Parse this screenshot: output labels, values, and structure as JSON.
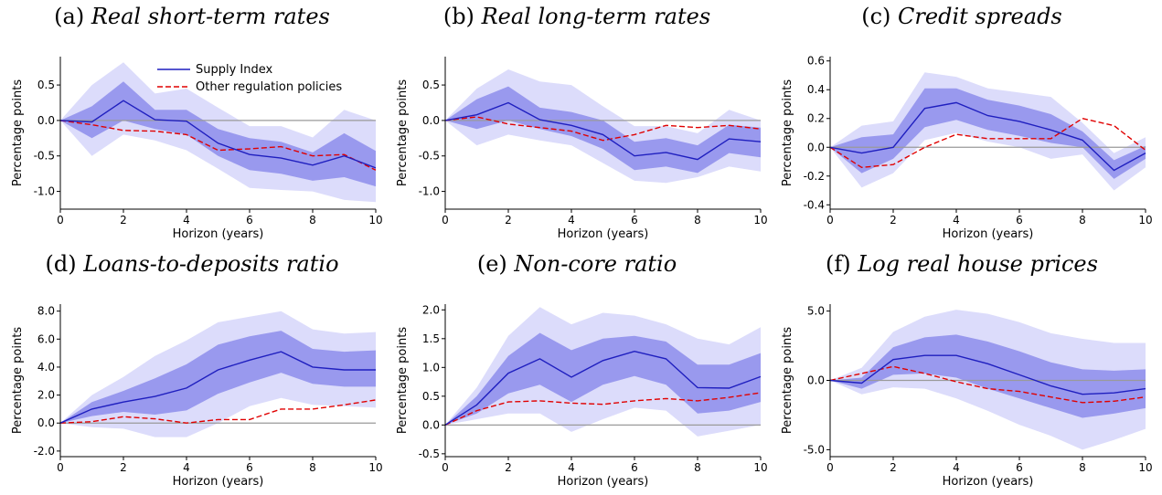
{
  "figure": {
    "legend": {
      "supply_label": "Supply Index",
      "other_label": "Other regulation policies"
    }
  },
  "colors": {
    "supply_line": "#1f1fbf",
    "other_line": "#e00000",
    "band_inner": "#9999ee",
    "band_outer": "#dcdcfb",
    "zero_line": "#9a9a9a"
  },
  "chart_data": [
    {
      "type": "line",
      "panel_label": "(a)",
      "title": "Real short-term rates",
      "xlabel": "Horizon (years)",
      "ylabel": "Percentage points",
      "xlim": [
        0,
        10
      ],
      "ylim": [
        -1.25,
        0.9
      ],
      "xticks": [
        0,
        2,
        4,
        6,
        8,
        10
      ],
      "xtick_labels": [
        "0",
        "2",
        "4",
        "6",
        "8",
        "10"
      ],
      "yticks": [
        0.5,
        0.0,
        -0.5,
        -1.0
      ],
      "ytick_labels": [
        "0.5",
        "0.0",
        "-0.5",
        "-1.0"
      ],
      "x": [
        0,
        1,
        2,
        3,
        4,
        5,
        6,
        7,
        8,
        9,
        10
      ],
      "series": [
        {
          "name": "Supply Index",
          "values": [
            0,
            -0.02,
            0.28,
            0.01,
            -0.01,
            -0.32,
            -0.48,
            -0.53,
            -0.63,
            -0.5,
            -0.67
          ]
        },
        {
          "name": "Other regulation policies",
          "values": [
            0,
            -0.06,
            -0.14,
            -0.15,
            -0.2,
            -0.42,
            -0.4,
            -0.37,
            -0.5,
            -0.48,
            -0.7
          ]
        }
      ],
      "bands": [
        {
          "lower": [
            0,
            -0.5,
            -0.2,
            -0.28,
            -0.42,
            -0.68,
            -0.95,
            -0.98,
            -1.0,
            -1.12,
            -1.15
          ],
          "upper": [
            0,
            0.5,
            0.82,
            0.38,
            0.45,
            0.18,
            -0.08,
            -0.08,
            -0.24,
            0.15,
            0.0
          ]
        },
        {
          "lower": [
            0,
            -0.25,
            0.0,
            -0.12,
            -0.2,
            -0.5,
            -0.7,
            -0.75,
            -0.85,
            -0.8,
            -0.93
          ],
          "upper": [
            0,
            0.2,
            0.55,
            0.15,
            0.15,
            -0.12,
            -0.25,
            -0.3,
            -0.45,
            -0.18,
            -0.43
          ]
        }
      ],
      "legend": "top-center"
    },
    {
      "type": "line",
      "panel_label": "(b)",
      "title": "Real long-term rates",
      "xlabel": "Horizon (years)",
      "ylabel": "Percentage points",
      "xlim": [
        0,
        10
      ],
      "ylim": [
        -1.25,
        0.9
      ],
      "xticks": [
        0,
        2,
        4,
        6,
        8,
        10
      ],
      "xtick_labels": [
        "0",
        "2",
        "4",
        "6",
        "8",
        "10"
      ],
      "yticks": [
        0.5,
        0.0,
        -0.5,
        -1.0
      ],
      "ytick_labels": [
        "0.5",
        "0.0",
        "-0.5",
        "-1.0"
      ],
      "x": [
        0,
        1,
        2,
        3,
        4,
        5,
        6,
        7,
        8,
        9,
        10
      ],
      "series": [
        {
          "name": "Supply Index",
          "values": [
            0,
            0.08,
            0.25,
            0.01,
            -0.07,
            -0.2,
            -0.5,
            -0.45,
            -0.55,
            -0.26,
            -0.3
          ]
        },
        {
          "name": "Other regulation policies",
          "values": [
            0,
            0.05,
            -0.05,
            -0.1,
            -0.15,
            -0.28,
            -0.2,
            -0.07,
            -0.1,
            -0.07,
            -0.12
          ]
        }
      ],
      "bands": [
        {
          "lower": [
            0,
            -0.35,
            -0.2,
            -0.28,
            -0.35,
            -0.6,
            -0.85,
            -0.88,
            -0.8,
            -0.65,
            -0.72
          ],
          "upper": [
            0,
            0.45,
            0.72,
            0.55,
            0.5,
            0.2,
            -0.08,
            -0.08,
            -0.18,
            0.15,
            0.0
          ]
        },
        {
          "lower": [
            0,
            -0.12,
            0.0,
            -0.12,
            -0.22,
            -0.4,
            -0.7,
            -0.65,
            -0.74,
            -0.46,
            -0.52
          ],
          "upper": [
            0,
            0.3,
            0.48,
            0.18,
            0.12,
            0.0,
            -0.3,
            -0.25,
            -0.35,
            -0.06,
            -0.1
          ]
        }
      ]
    },
    {
      "type": "line",
      "panel_label": "(c)",
      "title": "Credit spreads",
      "xlabel": "Horizon (years)",
      "ylabel": "Percentage points",
      "xlim": [
        0,
        10
      ],
      "ylim": [
        -0.43,
        0.63
      ],
      "xticks": [
        0,
        2,
        4,
        6,
        8,
        10
      ],
      "xtick_labels": [
        "0",
        "2",
        "4",
        "6",
        "8",
        "10"
      ],
      "yticks": [
        0.6,
        0.4,
        0.2,
        0.0,
        -0.2,
        -0.4
      ],
      "ytick_labels": [
        "0.6",
        "0.4",
        "0.2",
        "0.0",
        "-0.2",
        "-0.4"
      ],
      "x": [
        0,
        1,
        2,
        3,
        4,
        5,
        6,
        7,
        8,
        9,
        10
      ],
      "series": [
        {
          "name": "Supply Index",
          "values": [
            0,
            -0.04,
            0.0,
            0.27,
            0.31,
            0.22,
            0.18,
            0.12,
            0.05,
            -0.16,
            -0.04
          ]
        },
        {
          "name": "Other regulation policies",
          "values": [
            0,
            -0.14,
            -0.12,
            0.0,
            0.09,
            0.06,
            0.06,
            0.06,
            0.2,
            0.15,
            -0.02
          ]
        }
      ],
      "bands": [
        {
          "lower": [
            0,
            -0.28,
            -0.18,
            0.05,
            0.1,
            0.04,
            0.0,
            -0.08,
            -0.05,
            -0.3,
            -0.14
          ],
          "upper": [
            0,
            0.15,
            0.18,
            0.52,
            0.49,
            0.41,
            0.38,
            0.35,
            0.17,
            -0.04,
            0.07
          ]
        },
        {
          "lower": [
            0,
            -0.18,
            -0.08,
            0.14,
            0.19,
            0.12,
            0.08,
            0.03,
            0.0,
            -0.22,
            -0.08
          ],
          "upper": [
            0,
            0.07,
            0.09,
            0.41,
            0.41,
            0.33,
            0.29,
            0.23,
            0.11,
            -0.09,
            0.01
          ]
        }
      ]
    },
    {
      "type": "line",
      "panel_label": "(d)",
      "title": "Loans-to-deposits ratio",
      "xlabel": "Horizon (years)",
      "ylabel": "Percentage points",
      "xlim": [
        0,
        10
      ],
      "ylim": [
        -2.4,
        8.5
      ],
      "xticks": [
        0,
        2,
        4,
        6,
        8,
        10
      ],
      "xtick_labels": [
        "0",
        "2",
        "4",
        "6",
        "8",
        "10"
      ],
      "yticks": [
        8.0,
        6.0,
        4.0,
        2.0,
        0.0,
        -2.0
      ],
      "ytick_labels": [
        "8.0",
        "6.0",
        "4.0",
        "2.0",
        "0.0",
        "-2.0"
      ],
      "x": [
        0,
        1,
        2,
        3,
        4,
        5,
        6,
        7,
        8,
        9,
        10
      ],
      "series": [
        {
          "name": "Supply Index",
          "values": [
            0,
            1.0,
            1.5,
            1.9,
            2.5,
            3.8,
            4.5,
            5.1,
            4.0,
            3.8,
            3.8
          ]
        },
        {
          "name": "Other regulation policies",
          "values": [
            0,
            0.1,
            0.45,
            0.3,
            0.0,
            0.25,
            0.25,
            1.0,
            1.0,
            1.3,
            1.65
          ]
        }
      ],
      "bands": [
        {
          "lower": [
            0,
            -0.3,
            -0.4,
            -1.0,
            -1.0,
            0.0,
            1.2,
            1.8,
            1.3,
            1.2,
            1.1
          ],
          "upper": [
            0,
            2.0,
            3.3,
            4.8,
            5.9,
            7.2,
            7.6,
            8.0,
            6.7,
            6.4,
            6.5
          ]
        },
        {
          "lower": [
            0,
            0.5,
            0.8,
            0.6,
            0.9,
            2.1,
            2.9,
            3.6,
            2.8,
            2.6,
            2.6
          ],
          "upper": [
            0,
            1.5,
            2.3,
            3.2,
            4.2,
            5.6,
            6.2,
            6.6,
            5.3,
            5.1,
            5.2
          ]
        }
      ]
    },
    {
      "type": "line",
      "panel_label": "(e)",
      "title": "Non-core ratio",
      "xlabel": "Horizon (years)",
      "ylabel": "Percentage points",
      "xlim": [
        0,
        10
      ],
      "ylim": [
        -0.55,
        2.1
      ],
      "xticks": [
        0,
        2,
        4,
        6,
        8,
        10
      ],
      "xtick_labels": [
        "0",
        "2",
        "4",
        "6",
        "8",
        "10"
      ],
      "yticks": [
        2.0,
        1.5,
        1.0,
        0.5,
        0.0,
        -0.5
      ],
      "ytick_labels": [
        "2.0",
        "1.5",
        "1.0",
        "0.5",
        "0.0",
        "-0.5"
      ],
      "x": [
        0,
        1,
        2,
        3,
        4,
        5,
        6,
        7,
        8,
        9,
        10
      ],
      "series": [
        {
          "name": "Supply Index",
          "values": [
            0,
            0.35,
            0.9,
            1.15,
            0.83,
            1.12,
            1.28,
            1.15,
            0.65,
            0.64,
            0.84
          ]
        },
        {
          "name": "Other regulation policies",
          "values": [
            0,
            0.25,
            0.4,
            0.42,
            0.38,
            0.36,
            0.42,
            0.46,
            0.42,
            0.48,
            0.56
          ]
        }
      ],
      "bands": [
        {
          "lower": [
            0,
            0.1,
            0.2,
            0.2,
            -0.12,
            0.1,
            0.3,
            0.25,
            -0.2,
            -0.1,
            0.0
          ],
          "upper": [
            0,
            0.65,
            1.55,
            2.05,
            1.75,
            1.95,
            1.9,
            1.75,
            1.5,
            1.4,
            1.7
          ]
        },
        {
          "lower": [
            0,
            0.2,
            0.55,
            0.7,
            0.4,
            0.7,
            0.85,
            0.7,
            0.2,
            0.25,
            0.4
          ],
          "upper": [
            0,
            0.5,
            1.2,
            1.6,
            1.3,
            1.5,
            1.55,
            1.45,
            1.05,
            1.05,
            1.25
          ]
        }
      ]
    },
    {
      "type": "line",
      "panel_label": "(f)",
      "title": "Log real house prices",
      "xlabel": "Horizon (years)",
      "ylabel": "Percentage points",
      "xlim": [
        0,
        10
      ],
      "ylim": [
        -5.5,
        5.5
      ],
      "xticks": [
        0,
        2,
        4,
        6,
        8,
        10
      ],
      "xtick_labels": [
        "0",
        "2",
        "4",
        "6",
        "8",
        "10"
      ],
      "yticks": [
        5.0,
        0.0,
        -5.0
      ],
      "ytick_labels": [
        "5.0",
        "0.0",
        "-5.0"
      ],
      "x": [
        0,
        1,
        2,
        3,
        4,
        5,
        6,
        7,
        8,
        9,
        10
      ],
      "series": [
        {
          "name": "Supply Index",
          "values": [
            0,
            -0.2,
            1.5,
            1.8,
            1.8,
            1.2,
            0.4,
            -0.4,
            -1.0,
            -0.9,
            -0.6
          ]
        },
        {
          "name": "Other regulation policies",
          "values": [
            0,
            0.5,
            1.0,
            0.5,
            -0.1,
            -0.6,
            -0.8,
            -1.2,
            -1.6,
            -1.5,
            -1.2
          ]
        }
      ],
      "bands": [
        {
          "lower": [
            0,
            -1.0,
            -0.5,
            -0.6,
            -1.3,
            -2.2,
            -3.2,
            -4.0,
            -5.0,
            -4.3,
            -3.5
          ],
          "upper": [
            0,
            0.9,
            3.5,
            4.6,
            5.1,
            4.8,
            4.2,
            3.4,
            3.0,
            2.7,
            2.7
          ]
        },
        {
          "lower": [
            0,
            -0.6,
            0.4,
            0.5,
            0.2,
            -0.6,
            -1.3,
            -2.0,
            -2.7,
            -2.4,
            -2.0
          ],
          "upper": [
            0,
            0.2,
            2.4,
            3.1,
            3.3,
            2.8,
            2.1,
            1.3,
            0.8,
            0.7,
            0.8
          ]
        }
      ]
    }
  ]
}
